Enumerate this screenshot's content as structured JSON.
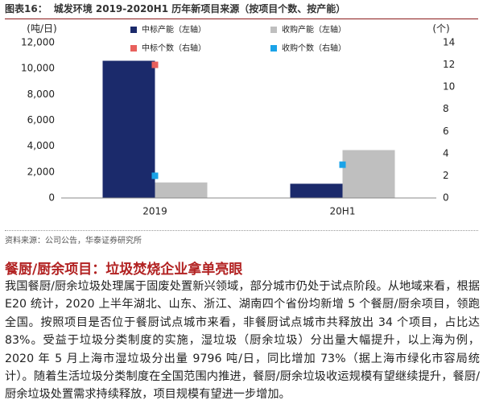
{
  "header": {
    "label": "图表16：",
    "title": "城发环境 2019-2020H1 历年新项目来源（按项目个数、按产能）"
  },
  "chart_data": {
    "type": "bar",
    "y_label": "(吨/日)",
    "y2_label": "(个)",
    "categories": [
      "2019",
      "20H1"
    ],
    "series": [
      {
        "name": "中标产能（左轴）",
        "color": "#1b2a6b",
        "type": "bar",
        "values": [
          10600,
          1100
        ]
      },
      {
        "name": "收购产能（左轴）",
        "color": "#bfbfbf",
        "type": "bar",
        "values": [
          1200,
          3700
        ]
      },
      {
        "name": "中标个数（右轴）",
        "color": "#e8605c",
        "type": "scatter",
        "axis": "y2",
        "values": [
          12,
          null
        ]
      },
      {
        "name": "收购个数（右轴）",
        "color": "#1aa3e8",
        "type": "scatter",
        "axis": "y2",
        "values": [
          2,
          3
        ]
      }
    ],
    "ylim": [
      0,
      12000
    ],
    "yticks": [
      0,
      {
        "value": 2000,
        "label": "2,000"
      },
      {
        "value": 4000,
        "label": "4,000"
      },
      {
        "value": 6000,
        "label": "6,000"
      },
      {
        "value": 8000,
        "label": "8,000"
      },
      {
        "value": 10000,
        "label": "10,000"
      },
      {
        "value": 12000,
        "label": "12,000"
      }
    ],
    "y2lim": [
      0,
      14
    ],
    "y2ticks": [
      0,
      2,
      4,
      6,
      8,
      10,
      12,
      14
    ]
  },
  "source": "资料来源：公司公告，华泰证券研究所",
  "section_title": "餐厨/厨余项目：垃圾焚烧企业拿单亮眼",
  "paragraph": "我国餐厨/厨余垃圾处理属于固废处置新兴领域，部分城市仍处于试点阶段。从地域来看，根据 E20 统计，2020 上半年湖北、山东、浙江、湖南四个省份均新增 5 个餐厨/厨余项目，领跑全国。按照项目是否位于餐厨试点城市来看，非餐厨试点城市共释放出 34 个项目，占比达 83%。受益于垃圾分类制度的实施，湿垃圾（厨余垃圾）分出量大幅提升，以上海为例，2020 年 5 月上海市湿垃圾分出量 9796 吨/日，同比增加 73%（据上海市绿化市容局统计）。随着生活垃圾分类制度在全国范围内推进，餐厨/厨余垃圾收运规模有望继续提升，餐厨/厨余垃圾处置需求持续释放，项目规模有望进一步增加。"
}
